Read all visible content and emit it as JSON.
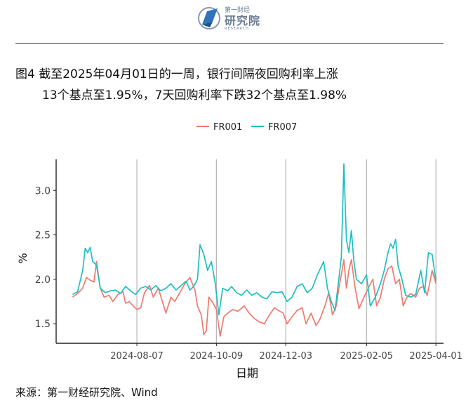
{
  "header": {
    "logo_top": "第一财经",
    "logo_main": "研究院",
    "logo_sub": "RESEARCH"
  },
  "figure": {
    "title_line1": "图4  截至2025年04月01日的一周，银行间隔夜回购利率上涨",
    "title_line2": "13个基点至1.95%，7天回购利率下跌32个基点至1.98%",
    "source": "来源：第一财经研究院、Wind"
  },
  "chart_data": {
    "type": "line",
    "xlabel": "日期",
    "ylabel": "%",
    "xlim": [
      "2024-06-04",
      "2025-04-07"
    ],
    "ylim": [
      1.28,
      3.35
    ],
    "yticks": [
      1.5,
      2.0,
      2.5,
      3.0
    ],
    "ytick_labels": [
      "1.5",
      "2.0",
      "2.5",
      "3.0"
    ],
    "xticks": [
      "2024-08-07",
      "2024-10-09",
      "2024-12-03",
      "2025-02-05",
      "2025-04-01"
    ],
    "grid": "vertical lines at x ticks",
    "legend_position": "top",
    "colors": {
      "FR001": "#f07a6e",
      "FR007": "#1fbfc4"
    },
    "series": [
      {
        "name": "FR001",
        "points": [
          [
            "2024-06-17",
            1.8
          ],
          [
            "2024-06-21",
            1.84
          ],
          [
            "2024-06-25",
            1.9
          ],
          [
            "2024-06-28",
            2.02
          ],
          [
            "2024-07-01",
            1.99
          ],
          [
            "2024-07-04",
            1.97
          ],
          [
            "2024-07-06",
            2.2
          ],
          [
            "2024-07-09",
            1.9
          ],
          [
            "2024-07-12",
            1.8
          ],
          [
            "2024-07-16",
            1.82
          ],
          [
            "2024-07-19",
            1.75
          ],
          [
            "2024-07-23",
            1.83
          ],
          [
            "2024-07-27",
            1.86
          ],
          [
            "2024-07-29",
            1.73
          ],
          [
            "2024-08-01",
            1.75
          ],
          [
            "2024-08-04",
            1.7
          ],
          [
            "2024-08-07",
            1.66
          ],
          [
            "2024-08-10",
            1.68
          ],
          [
            "2024-08-13",
            1.85
          ],
          [
            "2024-08-17",
            1.93
          ],
          [
            "2024-08-20",
            1.8
          ],
          [
            "2024-08-24",
            1.9
          ],
          [
            "2024-08-27",
            1.76
          ],
          [
            "2024-08-30",
            1.62
          ],
          [
            "2024-09-03",
            1.8
          ],
          [
            "2024-09-06",
            1.75
          ],
          [
            "2024-09-10",
            1.85
          ],
          [
            "2024-09-14",
            1.95
          ],
          [
            "2024-09-18",
            2.02
          ],
          [
            "2024-09-22",
            1.88
          ],
          [
            "2024-09-24",
            1.7
          ],
          [
            "2024-09-27",
            1.6
          ],
          [
            "2024-09-29",
            1.38
          ],
          [
            "2024-10-01",
            1.42
          ],
          [
            "2024-10-03",
            1.8
          ],
          [
            "2024-10-06",
            1.74
          ],
          [
            "2024-10-09",
            1.66
          ],
          [
            "2024-10-12",
            1.36
          ],
          [
            "2024-10-15",
            1.58
          ],
          [
            "2024-10-18",
            1.62
          ],
          [
            "2024-10-22",
            1.66
          ],
          [
            "2024-10-26",
            1.64
          ],
          [
            "2024-10-31",
            1.7
          ],
          [
            "2024-11-04",
            1.62
          ],
          [
            "2024-11-08",
            1.56
          ],
          [
            "2024-11-12",
            1.52
          ],
          [
            "2024-11-16",
            1.5
          ],
          [
            "2024-11-20",
            1.6
          ],
          [
            "2024-11-24",
            1.68
          ],
          [
            "2024-11-27",
            1.65
          ],
          [
            "2024-12-01",
            1.62
          ],
          [
            "2024-12-04",
            1.5
          ],
          [
            "2024-12-08",
            1.58
          ],
          [
            "2024-12-12",
            1.65
          ],
          [
            "2024-12-16",
            1.68
          ],
          [
            "2024-12-19",
            1.5
          ],
          [
            "2024-12-23",
            1.62
          ],
          [
            "2024-12-27",
            1.48
          ],
          [
            "2024-12-30",
            1.55
          ],
          [
            "2025-01-03",
            1.7
          ],
          [
            "2025-01-06",
            1.85
          ],
          [
            "2025-01-09",
            1.6
          ],
          [
            "2025-01-12",
            1.7
          ],
          [
            "2025-01-14",
            1.9
          ],
          [
            "2025-01-16",
            2.05
          ],
          [
            "2025-01-18",
            2.22
          ],
          [
            "2025-01-20",
            1.9
          ],
          [
            "2025-01-22",
            2.1
          ],
          [
            "2025-01-24",
            2.22
          ],
          [
            "2025-01-27",
            1.9
          ],
          [
            "2025-01-30",
            1.67
          ],
          [
            "2025-02-03",
            1.8
          ],
          [
            "2025-02-07",
            1.92
          ],
          [
            "2025-02-10",
            2.0
          ],
          [
            "2025-02-13",
            1.7
          ],
          [
            "2025-02-16",
            1.8
          ],
          [
            "2025-02-19",
            2.0
          ],
          [
            "2025-02-22",
            2.12
          ],
          [
            "2025-02-25",
            2.15
          ],
          [
            "2025-02-28",
            1.95
          ],
          [
            "2025-03-03",
            2.0
          ],
          [
            "2025-03-06",
            1.7
          ],
          [
            "2025-03-09",
            1.8
          ],
          [
            "2025-03-12",
            1.84
          ],
          [
            "2025-03-16",
            1.8
          ],
          [
            "2025-03-19",
            1.9
          ],
          [
            "2025-03-22",
            1.92
          ],
          [
            "2025-03-25",
            1.82
          ],
          [
            "2025-03-27",
            1.95
          ],
          [
            "2025-03-29",
            2.1
          ],
          [
            "2025-04-01",
            1.95
          ]
        ]
      },
      {
        "name": "FR007",
        "points": [
          [
            "2024-06-17",
            1.83
          ],
          [
            "2024-06-21",
            1.86
          ],
          [
            "2024-06-25",
            2.1
          ],
          [
            "2024-06-27",
            2.35
          ],
          [
            "2024-06-29",
            2.3
          ],
          [
            "2024-07-01",
            2.36
          ],
          [
            "2024-07-03",
            2.2
          ],
          [
            "2024-07-06",
            2.16
          ],
          [
            "2024-07-09",
            1.9
          ],
          [
            "2024-07-13",
            1.85
          ],
          [
            "2024-07-17",
            1.87
          ],
          [
            "2024-07-21",
            1.88
          ],
          [
            "2024-07-25",
            1.84
          ],
          [
            "2024-07-29",
            1.92
          ],
          [
            "2024-08-02",
            1.87
          ],
          [
            "2024-08-06",
            1.83
          ],
          [
            "2024-08-10",
            1.9
          ],
          [
            "2024-08-14",
            1.92
          ],
          [
            "2024-08-18",
            1.88
          ],
          [
            "2024-08-22",
            1.93
          ],
          [
            "2024-08-26",
            1.87
          ],
          [
            "2024-08-30",
            1.9
          ],
          [
            "2024-09-03",
            1.95
          ],
          [
            "2024-09-07",
            1.88
          ],
          [
            "2024-09-11",
            1.93
          ],
          [
            "2024-09-15",
            1.98
          ],
          [
            "2024-09-18",
            1.88
          ],
          [
            "2024-09-21",
            1.92
          ],
          [
            "2024-09-24",
            2.0
          ],
          [
            "2024-09-26",
            2.39
          ],
          [
            "2024-09-29",
            2.28
          ],
          [
            "2024-10-02",
            2.1
          ],
          [
            "2024-10-05",
            2.2
          ],
          [
            "2024-10-08",
            1.96
          ],
          [
            "2024-10-11",
            1.6
          ],
          [
            "2024-10-14",
            1.9
          ],
          [
            "2024-10-18",
            1.87
          ],
          [
            "2024-10-21",
            1.92
          ],
          [
            "2024-10-25",
            1.85
          ],
          [
            "2024-10-29",
            1.82
          ],
          [
            "2024-11-02",
            1.88
          ],
          [
            "2024-11-06",
            1.82
          ],
          [
            "2024-11-10",
            1.85
          ],
          [
            "2024-11-14",
            1.8
          ],
          [
            "2024-11-18",
            1.78
          ],
          [
            "2024-11-22",
            1.86
          ],
          [
            "2024-11-26",
            1.85
          ],
          [
            "2024-11-30",
            1.86
          ],
          [
            "2024-12-04",
            1.75
          ],
          [
            "2024-12-08",
            1.8
          ],
          [
            "2024-12-12",
            1.92
          ],
          [
            "2024-12-16",
            1.95
          ],
          [
            "2024-12-20",
            1.85
          ],
          [
            "2024-12-24",
            1.9
          ],
          [
            "2024-12-28",
            2.05
          ],
          [
            "2025-01-02",
            2.2
          ],
          [
            "2025-01-05",
            1.9
          ],
          [
            "2025-01-08",
            1.75
          ],
          [
            "2025-01-11",
            1.65
          ],
          [
            "2025-01-14",
            2.0
          ],
          [
            "2025-01-16",
            2.25
          ],
          [
            "2025-01-18",
            3.3
          ],
          [
            "2025-01-20",
            2.45
          ],
          [
            "2025-01-22",
            2.3
          ],
          [
            "2025-01-24",
            2.55
          ],
          [
            "2025-01-26",
            2.2
          ],
          [
            "2025-01-28",
            2.0
          ],
          [
            "2025-02-01",
            1.95
          ],
          [
            "2025-02-05",
            2.05
          ],
          [
            "2025-02-08",
            1.7
          ],
          [
            "2025-02-12",
            1.8
          ],
          [
            "2025-02-16",
            1.95
          ],
          [
            "2025-02-19",
            2.1
          ],
          [
            "2025-02-22",
            2.3
          ],
          [
            "2025-02-24",
            2.4
          ],
          [
            "2025-02-26",
            2.35
          ],
          [
            "2025-02-28",
            2.45
          ],
          [
            "2025-03-02",
            2.15
          ],
          [
            "2025-03-05",
            2.0
          ],
          [
            "2025-03-08",
            1.82
          ],
          [
            "2025-03-12",
            1.8
          ],
          [
            "2025-03-16",
            1.83
          ],
          [
            "2025-03-20",
            2.1
          ],
          [
            "2025-03-23",
            1.85
          ],
          [
            "2025-03-26",
            2.3
          ],
          [
            "2025-03-29",
            2.28
          ],
          [
            "2025-04-01",
            1.98
          ]
        ]
      }
    ]
  }
}
